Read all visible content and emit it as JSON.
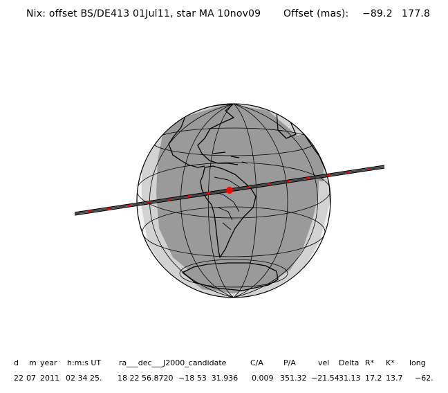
{
  "header": {
    "title": "Nix: offset BS/DE413 01Jul11, star MA 10nov09",
    "offset_label": "Offset (mas):",
    "offset_x": "−89.2",
    "offset_y": "177.8"
  },
  "table": {
    "headers": [
      "d",
      "m",
      "year",
      "h:m:s UT",
      "ra___dec___J2000_candidate",
      "C/A",
      "P/A",
      "vel",
      "Delta",
      "R*",
      "K*",
      "long"
    ],
    "values": [
      "22",
      "07",
      "2011",
      "02 34 25.",
      "18 22 56.8720",
      "−18 53  31.936",
      "0.009",
      "351.32",
      "−21.54",
      "31.13",
      "17.2",
      "13.7",
      "−62."
    ]
  },
  "colors": {
    "night": "#9a9a9a",
    "twilight": "#d2d2d2",
    "day": "#f2f2f2",
    "track": "#000000",
    "track_marker": "#ff0000",
    "closest_approach": "#ff0000"
  }
}
